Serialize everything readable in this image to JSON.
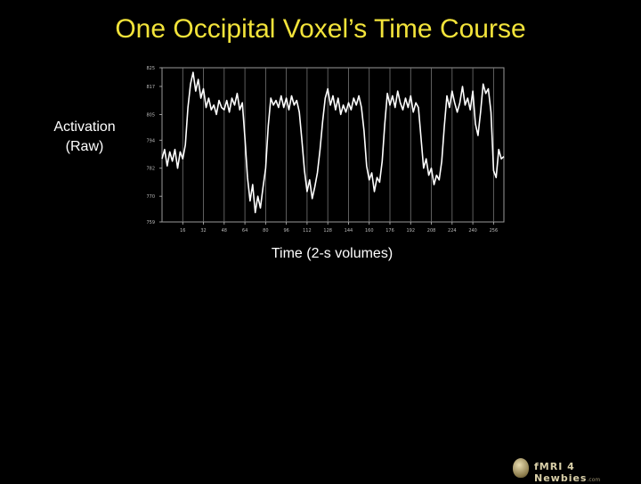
{
  "slide": {
    "title": "One Occipital Voxel’s Time Course",
    "ylabel_line1": "Activation",
    "ylabel_line2": "(Raw)",
    "xlabel": "Time (2-s volumes)",
    "logo_main": "fMRI 4 Newbies",
    "logo_suffix": ".com"
  },
  "colors": {
    "background": "#000000",
    "title": "#f2e33a",
    "line": "#ffffff",
    "grid": "#777777"
  },
  "chart_data": {
    "type": "line",
    "title": "",
    "xlabel": "Time (2-s volumes)",
    "ylabel": "Activation (Raw)",
    "xlim": [
      0,
      264
    ],
    "ylim": [
      759,
      825
    ],
    "xticks": [
      16,
      32,
      48,
      64,
      80,
      96,
      112,
      128,
      144,
      160,
      176,
      192,
      208,
      224,
      240,
      256
    ],
    "xtick_labels": [
      "16",
      "32",
      "48",
      "64",
      "80",
      "96",
      "112",
      "128",
      "144",
      "160",
      "176",
      "192",
      "208",
      "224",
      "240",
      "256"
    ],
    "yticks": [
      759,
      770,
      782,
      794,
      805,
      817,
      825
    ],
    "ytick_labels": [
      "759",
      "770",
      "782",
      "794",
      "805",
      "817",
      "825"
    ],
    "grid": "vertical",
    "series": [
      {
        "x": [
          0,
          2,
          4,
          6,
          8,
          10,
          12,
          14,
          16,
          18,
          20,
          22,
          24,
          26,
          28,
          30,
          32,
          34,
          36,
          38,
          40,
          42,
          44,
          46,
          48,
          50,
          52,
          54,
          56,
          58,
          60,
          62,
          64,
          66,
          68,
          70,
          72,
          74,
          76,
          78,
          80,
          82,
          84,
          86,
          88,
          90,
          92,
          94,
          96,
          98,
          100,
          102,
          104,
          106,
          108,
          110,
          112,
          114,
          116,
          118,
          120,
          122,
          124,
          126,
          128,
          130,
          132,
          134,
          136,
          138,
          140,
          142,
          144,
          146,
          148,
          150,
          152,
          154,
          156,
          158,
          160,
          162,
          164,
          166,
          168,
          170,
          172,
          174,
          176,
          178,
          180,
          182,
          184,
          186,
          188,
          190,
          192,
          194,
          196,
          198,
          200,
          202,
          204,
          206,
          208,
          210,
          212,
          214,
          216,
          218,
          220,
          222,
          224,
          226,
          228,
          230,
          232,
          234,
          236,
          238,
          240,
          242,
          244,
          246,
          248,
          250,
          252,
          254,
          256,
          258,
          260,
          262,
          264
        ],
        "values": [
          786,
          790,
          783,
          789,
          785,
          790,
          782,
          789,
          786,
          792,
          808,
          818,
          823,
          815,
          820,
          812,
          816,
          808,
          812,
          807,
          809,
          805,
          811,
          808,
          807,
          811,
          806,
          812,
          809,
          814,
          807,
          810,
          795,
          778,
          768,
          775,
          763,
          770,
          765,
          774,
          782,
          800,
          812,
          809,
          811,
          808,
          813,
          808,
          812,
          807,
          813,
          809,
          811,
          806,
          794,
          781,
          772,
          777,
          769,
          774,
          780,
          790,
          802,
          812,
          816,
          809,
          813,
          807,
          812,
          805,
          809,
          806,
          810,
          807,
          812,
          809,
          813,
          808,
          798,
          783,
          777,
          780,
          772,
          778,
          776,
          785,
          801,
          814,
          809,
          813,
          808,
          815,
          810,
          807,
          812,
          808,
          813,
          806,
          810,
          808,
          795,
          782,
          786,
          779,
          782,
          775,
          779,
          777,
          785,
          800,
          813,
          808,
          815,
          810,
          806,
          810,
          817,
          809,
          812,
          807,
          815,
          801,
          796,
          806,
          818,
          814,
          816,
          806,
          781,
          778,
          790,
          786,
          787
        ]
      }
    ]
  }
}
